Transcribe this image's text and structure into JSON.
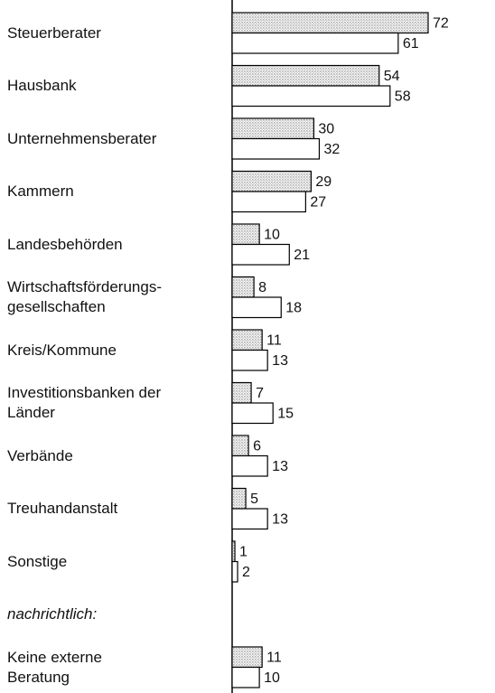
{
  "chart_data": {
    "type": "hbar",
    "categories": [
      "Steuerberater",
      "Hausbank",
      "Unternehmensberater",
      "Kammern",
      "Landesbehörden",
      "Wirtschaftsförderungs-\ngesellschaften",
      "Kreis/Kommune",
      "Investitionsbanken der\nLänder",
      "Verbände",
      "Treuhandanstalt",
      "Sonstige",
      "Keine externe\nBeratung"
    ],
    "annotation": "nachrichtlich:",
    "series": [
      {
        "color": "#b0b0b0",
        "values": [
          72,
          54,
          30,
          29,
          10,
          8,
          11,
          7,
          6,
          5,
          1,
          11
        ]
      },
      {
        "color": "#ffffff",
        "values": [
          61,
          58,
          32,
          27,
          21,
          18,
          13,
          15,
          13,
          13,
          2,
          10
        ]
      }
    ]
  }
}
